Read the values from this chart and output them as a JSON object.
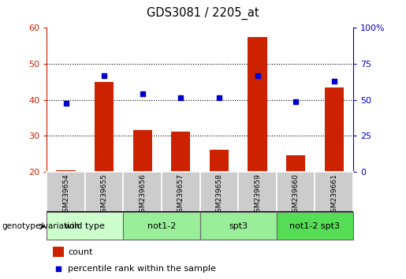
{
  "title": "GDS3081 / 2205_at",
  "samples": [
    "GSM239654",
    "GSM239655",
    "GSM239656",
    "GSM239657",
    "GSM239658",
    "GSM239659",
    "GSM239660",
    "GSM239661"
  ],
  "count_values": [
    20.3,
    45.0,
    31.5,
    31.2,
    26.0,
    57.5,
    24.5,
    43.5
  ],
  "percentile_values": [
    47.5,
    67.0,
    54.0,
    51.5,
    51.5,
    66.5,
    48.5,
    63.0
  ],
  "ylim_left": [
    20,
    60
  ],
  "ylim_right": [
    0,
    100
  ],
  "yticks_left": [
    20,
    30,
    40,
    50,
    60
  ],
  "yticks_right": [
    0,
    25,
    50,
    75,
    100
  ],
  "bar_color": "#cc2200",
  "dot_color": "#0000cc",
  "bg_color": "#ffffff",
  "group_colors": [
    "#ccffcc",
    "#99ee99",
    "#99ee99",
    "#55dd55"
  ],
  "group_labels": [
    "wild type",
    "not1-2",
    "spt3",
    "not1-2 spt3"
  ],
  "group_ranges": [
    [
      0,
      1
    ],
    [
      2,
      3
    ],
    [
      4,
      5
    ],
    [
      6,
      7
    ]
  ],
  "legend_count_label": "count",
  "legend_pct_label": "percentile rank within the sample",
  "genotype_label": "genotype/variation",
  "bar_width": 0.5,
  "sample_label_bg": "#cccccc",
  "grid_yticks": [
    30,
    40,
    50
  ]
}
